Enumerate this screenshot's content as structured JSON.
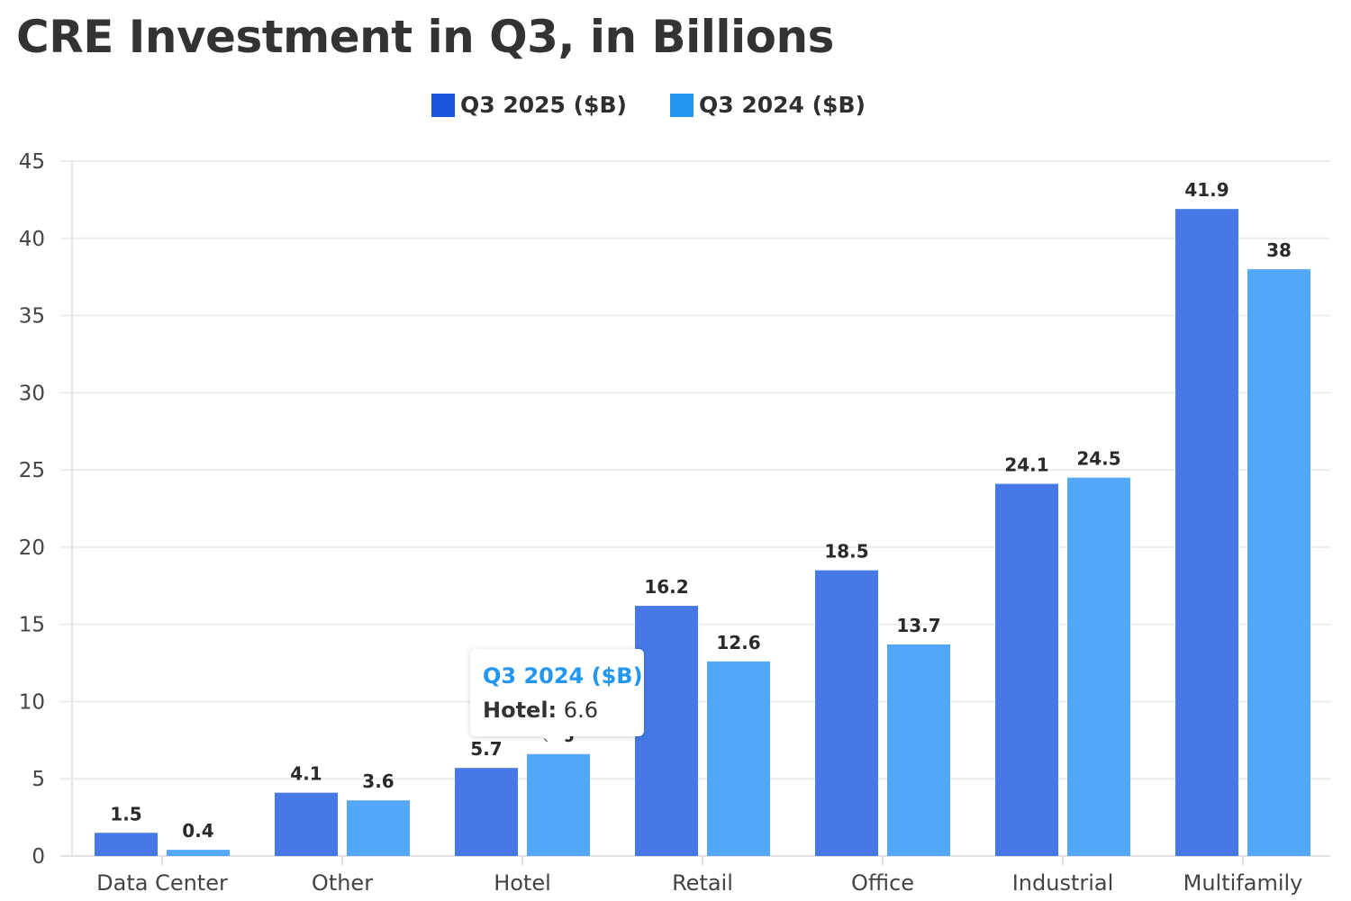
{
  "chart_data": {
    "type": "bar",
    "title": "CRE Investment in Q3, in Billions",
    "xlabel": "",
    "ylabel": "",
    "ylim": [
      0,
      45
    ],
    "yticks": [
      0,
      5,
      10,
      15,
      20,
      25,
      30,
      35,
      40,
      45
    ],
    "grid": true,
    "legend_position": "top-center",
    "categories": [
      "Data Center",
      "Other",
      "Hotel",
      "Retail",
      "Office",
      "Industrial",
      "Multifamily"
    ],
    "series": [
      {
        "name": "Q3 2025 ($B)",
        "color": "#4679e6",
        "legend_color": "#1a56db",
        "values": [
          1.5,
          4.1,
          5.7,
          16.2,
          18.5,
          24.1,
          41.9
        ]
      },
      {
        "name": "Q3 2024 ($B)",
        "color": "#54a8fb",
        "legend_color": "#2196f3",
        "values": [
          0.4,
          3.6,
          6.6,
          12.6,
          13.7,
          24.5,
          38
        ]
      }
    ],
    "data_labels": true,
    "tooltip": {
      "series": "Q3 2024 ($B)",
      "category": "Hotel",
      "value": "6.6",
      "title_color": "#2196f3"
    }
  }
}
